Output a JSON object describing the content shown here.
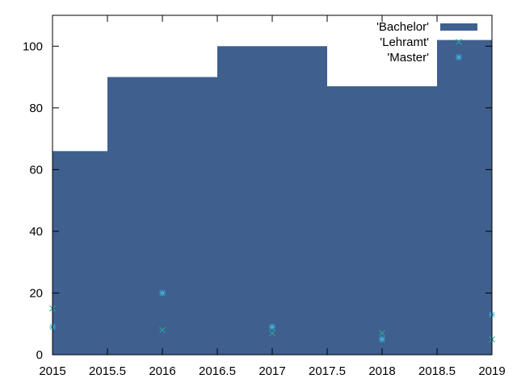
{
  "chart_data": {
    "type": "bar",
    "x_range": [
      2015,
      2019
    ],
    "y_range": [
      0,
      110
    ],
    "x_ticks": [
      "2015",
      "2015.5",
      "2016",
      "2016.5",
      "2017",
      "2017.5",
      "2018",
      "2018.5",
      "2019"
    ],
    "y_ticks": [
      "0",
      "20",
      "40",
      "60",
      "80",
      "100"
    ],
    "grid": false,
    "legend_position": "top-right",
    "series": [
      {
        "name": "'Bachelor'",
        "style": "step-fill",
        "color": "#3f5f8f",
        "x": [
          2015,
          2016,
          2017,
          2018,
          2019
        ],
        "values": [
          66,
          90,
          100,
          87,
          102
        ]
      },
      {
        "name": "'Lehramt'",
        "style": "points-x",
        "color": "#2aa898",
        "x": [
          2015,
          2016,
          2017,
          2018,
          2019
        ],
        "values": [
          15,
          8,
          7,
          7,
          5
        ]
      },
      {
        "name": "'Master'",
        "style": "points-star",
        "color": "#3ab8d8",
        "x": [
          2015,
          2016,
          2017,
          2018,
          2019
        ],
        "values": [
          9,
          20,
          9,
          5,
          13
        ]
      }
    ]
  }
}
